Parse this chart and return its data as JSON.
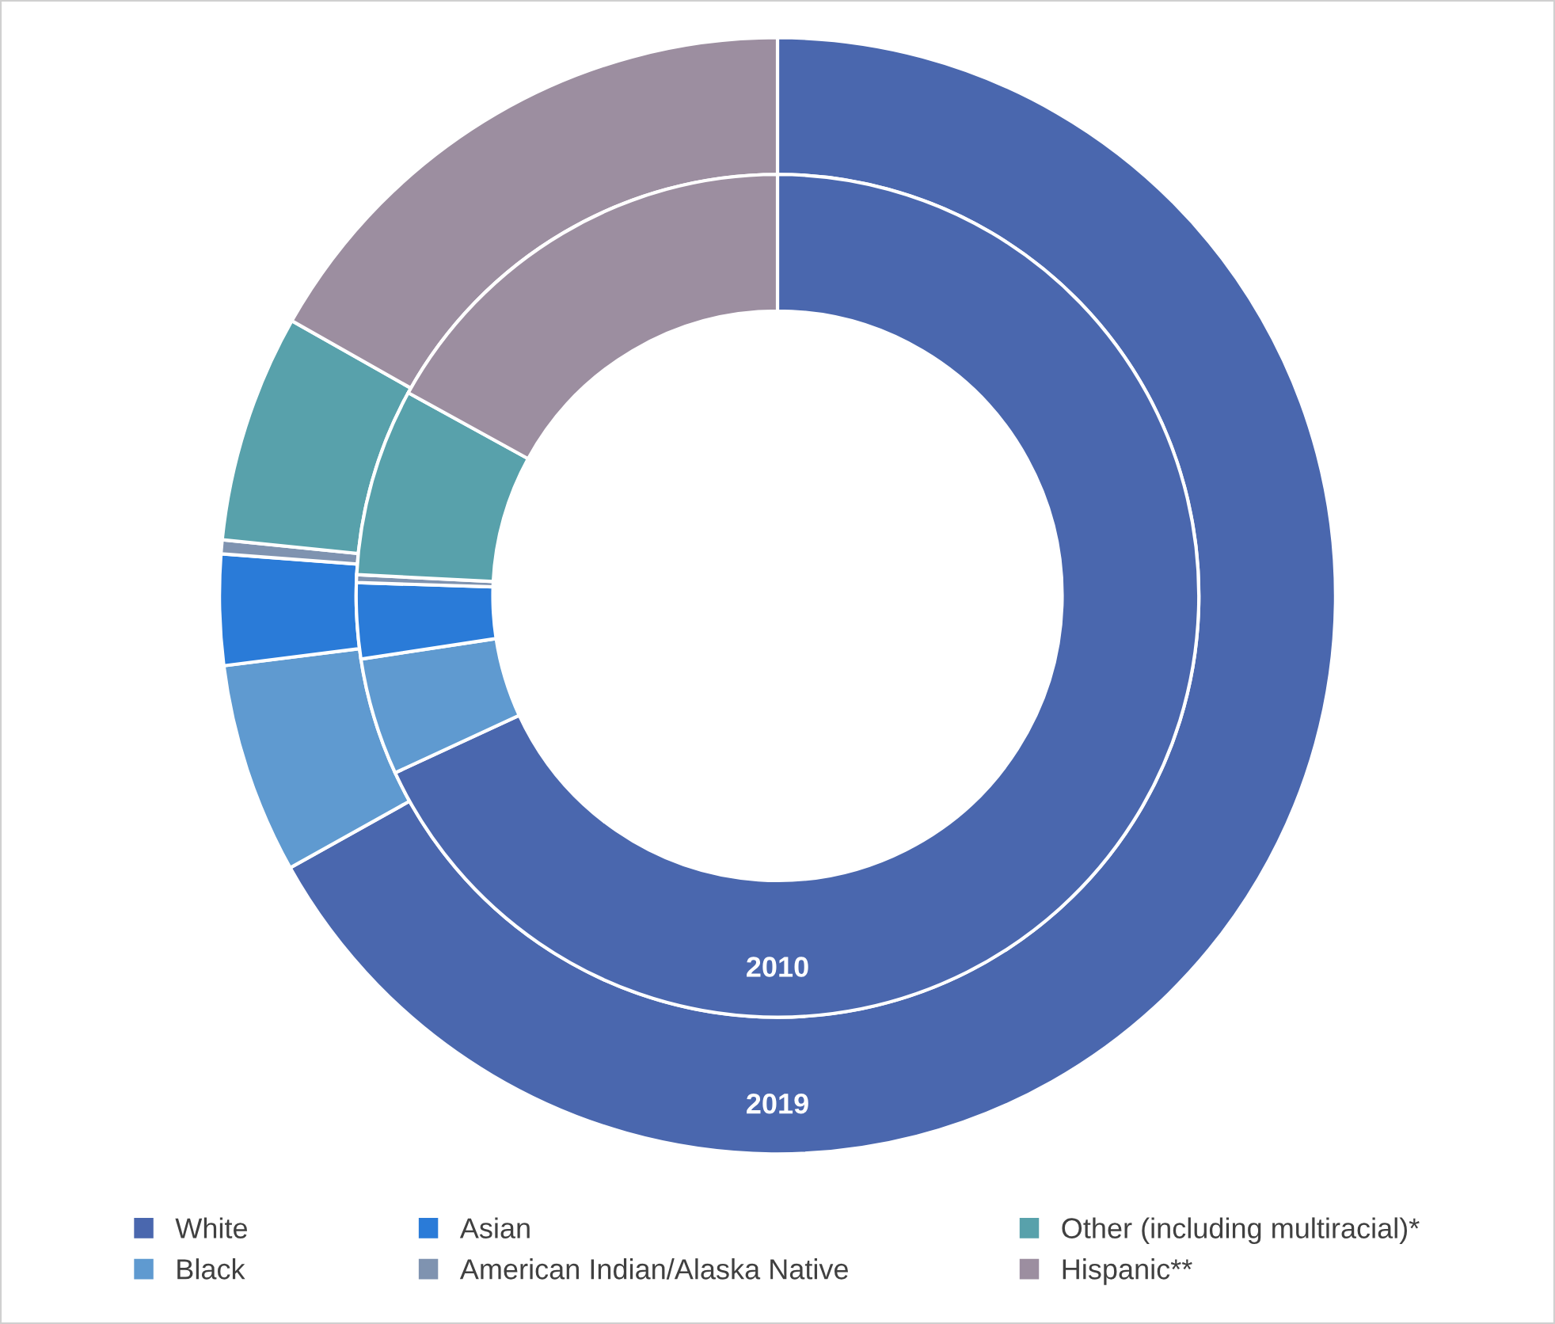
{
  "chart_data": {
    "type": "donut",
    "categories": [
      "White",
      "Black",
      "Asian",
      "American Indian/Alaska Native",
      "Other (including multiracial)*",
      "Hispanic**"
    ],
    "colors": [
      "#4a67ae",
      "#5f9ad0",
      "#2a7bd8",
      "#7f93b0",
      "#58a1ab",
      "#9c8ea0"
    ],
    "series": [
      {
        "name": "2019",
        "values": [
          66.9,
          6.1,
          3.2,
          0.4,
          6.6,
          16.8
        ]
      },
      {
        "name": "2010",
        "values": [
          68.1,
          4.5,
          2.9,
          0.3,
          7.2,
          17.0
        ]
      }
    ],
    "legend": "bottom"
  }
}
